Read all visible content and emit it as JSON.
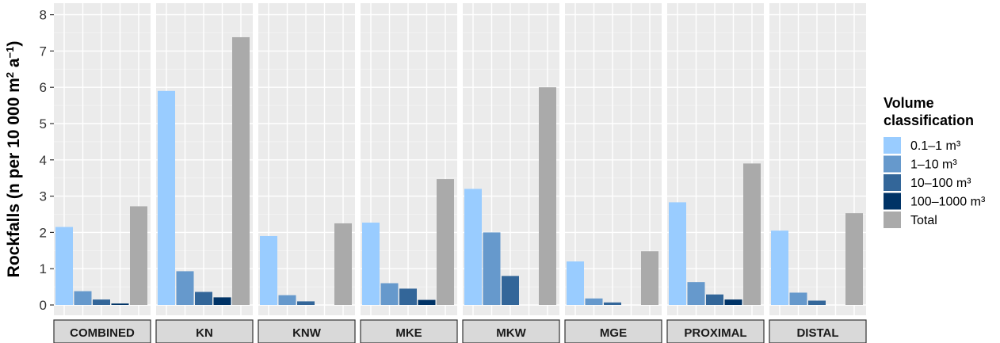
{
  "chart_data": {
    "type": "bar",
    "facets": [
      "COMBINED",
      "KN",
      "KNW",
      "MKE",
      "MKW",
      "MGE",
      "PROXIMAL",
      "DISTAL"
    ],
    "y_axis": {
      "label_prefix": "Rockfalls (n per 10 000 m",
      "label_sup1": "2",
      "label_mid": " a",
      "label_sup2": "−1",
      "label_suffix": ")",
      "ylim": [
        -0.3,
        8.2
      ],
      "ticks": [
        0,
        1,
        2,
        3,
        4,
        5,
        6,
        7,
        8
      ]
    },
    "grid": true,
    "legend": {
      "title_line1": "Volume",
      "title_line2": "classification",
      "position": "right"
    },
    "series": [
      {
        "name": "0.1–1 m³",
        "color": "#99ccff",
        "values": [
          2.15,
          5.9,
          1.9,
          2.27,
          3.2,
          1.2,
          2.83,
          2.05
        ]
      },
      {
        "name": "1–10 m³",
        "color": "#6699cc",
        "values": [
          0.38,
          0.93,
          0.27,
          0.6,
          2.0,
          0.18,
          0.63,
          0.34
        ]
      },
      {
        "name": "10–100 m³",
        "color": "#336699",
        "values": [
          0.15,
          0.36,
          0.1,
          0.45,
          0.8,
          0.07,
          0.29,
          0.12
        ]
      },
      {
        "name": "100–1000 m³",
        "color": "#003366",
        "values": [
          0.04,
          0.21,
          0,
          0.14,
          0,
          0,
          0.15,
          0
        ]
      },
      {
        "name": "Total",
        "color": "#aaaaaa",
        "values": [
          2.72,
          7.38,
          2.25,
          3.47,
          6.0,
          1.48,
          3.9,
          2.53
        ]
      }
    ]
  }
}
